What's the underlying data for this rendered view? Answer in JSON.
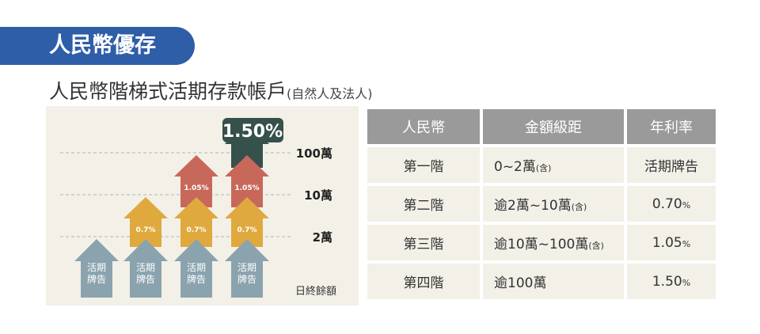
{
  "header": {
    "badge": "人民幣優存"
  },
  "subtitle": {
    "main": "人民幣階梯式活期存款帳戶",
    "note": "(自然人及法人)"
  },
  "chart_data": {
    "type": "bar",
    "tier_labels": [
      "100萬",
      "10萬",
      "2萬"
    ],
    "balance_label": "日終餘額",
    "base_label": "活期牌告",
    "columns": [
      {
        "segments": [
          "活期牌告"
        ]
      },
      {
        "segments": [
          "活期牌告",
          "0.7%"
        ]
      },
      {
        "segments": [
          "活期牌告",
          "0.7%",
          "1.05%"
        ]
      },
      {
        "segments": [
          "活期牌告",
          "0.7%",
          "1.05%",
          "1.50%"
        ]
      }
    ],
    "segment_colors": [
      "#8aa3ae",
      "#e0a93e",
      "#c8685a",
      "#36504c"
    ]
  },
  "table": {
    "headers": [
      "人民幣",
      "金額級距",
      "年利率"
    ],
    "rows": [
      {
        "tier": "第一階",
        "range": "0~2萬",
        "inc": "(含)",
        "rate": "活期牌告",
        "unit": ""
      },
      {
        "tier": "第二階",
        "range": "逾2萬~10萬",
        "inc": "(含)",
        "rate": "0.70",
        "unit": "%"
      },
      {
        "tier": "第三階",
        "range": "逾10萬~100萬",
        "inc": "(含)",
        "rate": "1.05",
        "unit": "%"
      },
      {
        "tier": "第四階",
        "range": "逾100萬",
        "inc": "",
        "rate": "1.50",
        "unit": "%"
      }
    ]
  }
}
